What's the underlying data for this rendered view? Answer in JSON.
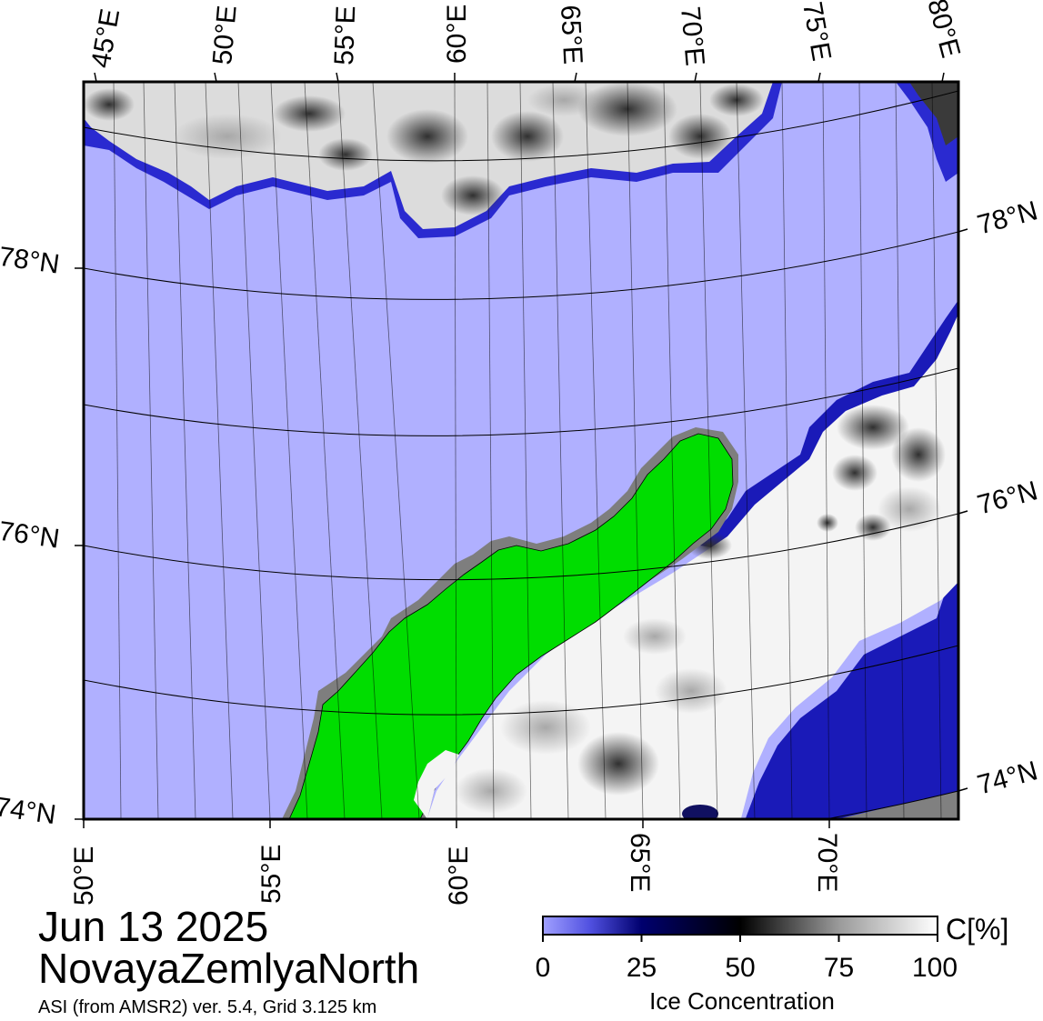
{
  "map": {
    "date": "Jun 13 2025",
    "region": "NovayaZemlyaNorth",
    "source": "ASI (from AMSR2) ver. 5.4,  Grid 3.125 km",
    "top_lon_labels": [
      "45°E",
      "50°E",
      "55°E",
      "60°E",
      "65°E",
      "70°E",
      "75°E",
      "80°E"
    ],
    "bottom_lon_labels": [
      "50°E",
      "55°E",
      "60°E",
      "65°E",
      "70°E"
    ],
    "left_lat_labels": [
      "78°N",
      "76°N",
      "74°N"
    ],
    "right_lat_labels": [
      "78°N",
      "76°N",
      "74°N"
    ],
    "colors": {
      "open_water": "#b0b0ff",
      "land": "#00dd00",
      "no_data": "#808080",
      "ice_full": "#ffffff",
      "ice_mid": "#000000",
      "ice_low": "#00007a"
    }
  },
  "colorbar": {
    "ticks": [
      "0",
      "25",
      "50",
      "75",
      "100"
    ],
    "tick_values": [
      0,
      25,
      50,
      75,
      100
    ],
    "unit": "C[%]",
    "title": "Ice Concentration",
    "stops": [
      {
        "value": 0,
        "color": "#a0a0ff"
      },
      {
        "value": 12,
        "color": "#5050e0"
      },
      {
        "value": 25,
        "color": "#00006e"
      },
      {
        "value": 50,
        "color": "#000000"
      },
      {
        "value": 75,
        "color": "#9a9a9a"
      },
      {
        "value": 100,
        "color": "#ffffff"
      }
    ]
  }
}
